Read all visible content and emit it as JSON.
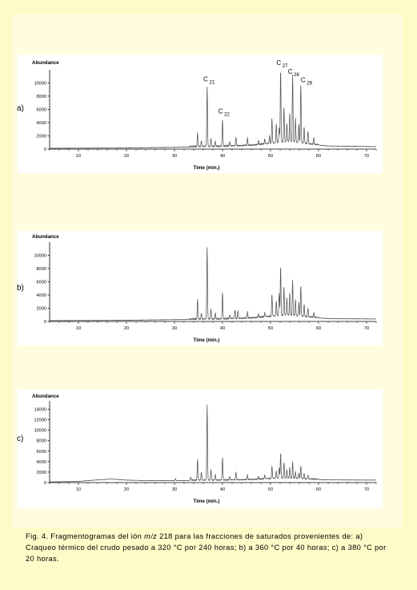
{
  "figure": {
    "caption_parts": [
      "Fig. 4. Fragmentogramas del ión ",
      "m/z",
      " 218 para las fracciones de saturados provenientes de:  a) Craqueo térmico del crudo pesado a 320 °C por 240 horas;    b) a 360 °C por 40 horas;      c) a 380 °C por 20 horas."
    ]
  },
  "colors": {
    "background": "#fffbc8",
    "panel": "#ffffff",
    "trace": "#555555",
    "axis": "#000000"
  },
  "chart_data": [
    {
      "panel_label": "a)",
      "type": "line",
      "ylabel": "Abundance",
      "xlabel": "Time (min.)",
      "xlim": [
        4,
        72
      ],
      "ylim": [
        0,
        11500
      ],
      "x_ticks": [
        10,
        20,
        30,
        40,
        50,
        60,
        70
      ],
      "y_ticks": [
        0,
        2000,
        4000,
        6000,
        8000,
        10000
      ],
      "baseline": [
        [
          4,
          100
        ],
        [
          20,
          150
        ],
        [
          30,
          250
        ],
        [
          40,
          350
        ],
        [
          46,
          500
        ],
        [
          50,
          800
        ],
        [
          54,
          1100
        ],
        [
          58,
          700
        ],
        [
          62,
          450
        ],
        [
          72,
          350
        ]
      ],
      "peaks": [
        [
          34.8,
          2000
        ],
        [
          35.6,
          900
        ],
        [
          36.8,
          8900
        ],
        [
          37.6,
          1200
        ],
        [
          38.5,
          800
        ],
        [
          40.0,
          4000
        ],
        [
          41.5,
          700
        ],
        [
          42.8,
          1300
        ],
        [
          45.2,
          1100
        ],
        [
          47.5,
          600
        ],
        [
          48.8,
          700
        ],
        [
          49.8,
          1100
        ],
        [
          50.3,
          3700
        ],
        [
          51.2,
          2800
        ],
        [
          51.8,
          2200
        ],
        [
          52.1,
          11100
        ],
        [
          52.8,
          5200
        ],
        [
          53.4,
          2600
        ],
        [
          54.0,
          4200
        ],
        [
          54.6,
          10000
        ],
        [
          55.2,
          3500
        ],
        [
          55.9,
          2700
        ],
        [
          56.3,
          8900
        ],
        [
          57.0,
          2400
        ],
        [
          57.8,
          1900
        ],
        [
          59.0,
          1000
        ]
      ],
      "peak_labels": [
        {
          "name": "C",
          "sub": "21",
          "x": 37.2,
          "y": 10200
        },
        {
          "name": "C",
          "sub": "22",
          "x": 40.3,
          "y": 5400
        },
        {
          "name": "C",
          "sub": "27",
          "x": 52.4,
          "y": 12700
        },
        {
          "name": "C",
          "sub": "28",
          "x": 54.8,
          "y": 11400
        },
        {
          "name": "C",
          "sub": "29",
          "x": 57.5,
          "y": 10100
        }
      ]
    },
    {
      "panel_label": "b)",
      "type": "line",
      "ylabel": "Abundance",
      "xlabel": "Time (min.)",
      "xlim": [
        4,
        72
      ],
      "ylim": [
        0,
        11500
      ],
      "x_ticks": [
        10,
        20,
        30,
        40,
        50,
        60,
        70
      ],
      "y_ticks": [
        0,
        2000,
        4000,
        6000,
        8000,
        10000
      ],
      "baseline": [
        [
          4,
          100
        ],
        [
          20,
          150
        ],
        [
          30,
          250
        ],
        [
          40,
          300
        ],
        [
          46,
          450
        ],
        [
          50,
          700
        ],
        [
          54,
          900
        ],
        [
          58,
          600
        ],
        [
          62,
          400
        ],
        [
          72,
          350
        ]
      ],
      "peaks": [
        [
          34.8,
          2900
        ],
        [
          35.6,
          900
        ],
        [
          36.8,
          10700
        ],
        [
          37.6,
          1500
        ],
        [
          38.5,
          900
        ],
        [
          40.0,
          4000
        ],
        [
          41.5,
          600
        ],
        [
          42.6,
          1300
        ],
        [
          43.2,
          1100
        ],
        [
          45.2,
          900
        ],
        [
          47.5,
          500
        ],
        [
          48.8,
          600
        ],
        [
          50.3,
          3200
        ],
        [
          51.2,
          2200
        ],
        [
          51.8,
          3400
        ],
        [
          52.1,
          7300
        ],
        [
          52.8,
          4300
        ],
        [
          53.4,
          2500
        ],
        [
          54.0,
          3300
        ],
        [
          54.6,
          5200
        ],
        [
          55.2,
          2300
        ],
        [
          55.9,
          2000
        ],
        [
          56.3,
          4600
        ],
        [
          57.0,
          1800
        ],
        [
          57.8,
          1300
        ],
        [
          59.0,
          700
        ]
      ],
      "peak_labels": []
    },
    {
      "panel_label": "c)",
      "type": "line",
      "ylabel": "Abundance",
      "xlabel": "Time (min.)",
      "xlim": [
        4,
        72
      ],
      "ylim": [
        0,
        15000
      ],
      "x_ticks": [
        10,
        20,
        30,
        40,
        50,
        60,
        70
      ],
      "y_ticks": [
        0,
        2000,
        4000,
        6000,
        8000,
        10000,
        12000,
        14000
      ],
      "baseline": [
        [
          4,
          100
        ],
        [
          10,
          200
        ],
        [
          14,
          500
        ],
        [
          17,
          650
        ],
        [
          20,
          450
        ],
        [
          24,
          350
        ],
        [
          30,
          350
        ],
        [
          40,
          400
        ],
        [
          46,
          500
        ],
        [
          50,
          700
        ],
        [
          54,
          800
        ],
        [
          58,
          600
        ],
        [
          62,
          500
        ],
        [
          72,
          450
        ]
      ],
      "peaks": [
        [
          30.2,
          400
        ],
        [
          33.4,
          600
        ],
        [
          34.8,
          3900
        ],
        [
          35.6,
          1600
        ],
        [
          36.8,
          14300
        ],
        [
          37.6,
          2000
        ],
        [
          38.5,
          1100
        ],
        [
          40.0,
          4300
        ],
        [
          41.5,
          700
        ],
        [
          42.8,
          1500
        ],
        [
          45.2,
          900
        ],
        [
          47.5,
          500
        ],
        [
          48.8,
          700
        ],
        [
          50.3,
          2300
        ],
        [
          51.2,
          1400
        ],
        [
          51.8,
          2000
        ],
        [
          52.1,
          4700
        ],
        [
          52.8,
          3000
        ],
        [
          53.4,
          1500
        ],
        [
          54.0,
          2000
        ],
        [
          54.6,
          3000
        ],
        [
          55.2,
          1200
        ],
        [
          55.9,
          1000
        ],
        [
          56.3,
          2400
        ],
        [
          57.0,
          1000
        ],
        [
          57.8,
          800
        ]
      ],
      "peak_labels": []
    }
  ]
}
